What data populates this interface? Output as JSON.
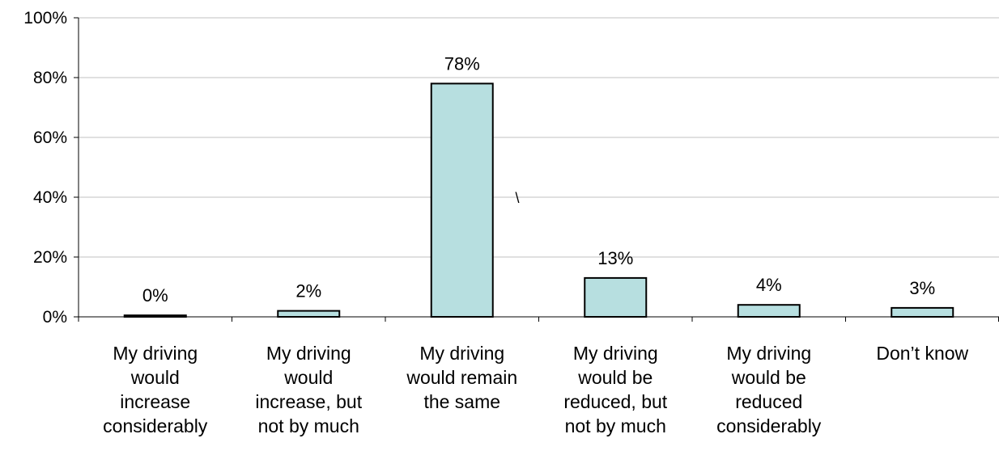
{
  "chart_data": {
    "type": "bar",
    "categories": [
      "My driving would increase considerably",
      "My driving would increase, but not by much",
      "My driving would remain the same",
      "My driving would be reduced, but not by much",
      "My driving would be reduced considerably",
      "Don’t know"
    ],
    "category_lines": [
      [
        "My driving",
        "would",
        "increase",
        "considerably"
      ],
      [
        "My driving",
        "would",
        "increase, but",
        "not by much"
      ],
      [
        "My driving",
        "would remain",
        "the same"
      ],
      [
        "My driving",
        "would be",
        "reduced, but",
        "not by much"
      ],
      [
        "My driving",
        "would be",
        "reduced",
        "considerably"
      ],
      [
        "Don’t know"
      ]
    ],
    "values": [
      0.5,
      2,
      78,
      13,
      4,
      3
    ],
    "data_labels": [
      "0%",
      "2%",
      "78%",
      "13%",
      "4%",
      "3%"
    ],
    "y_ticks": [
      "0%",
      "20%",
      "40%",
      "60%",
      "80%",
      "100%"
    ],
    "ylim": [
      0,
      100
    ],
    "grid": true,
    "legend": "none",
    "bar_color": "#b7dfe0",
    "bar_edge_color": "#000000",
    "grid_color": "#c0c0c0",
    "annotation": "\\"
  }
}
